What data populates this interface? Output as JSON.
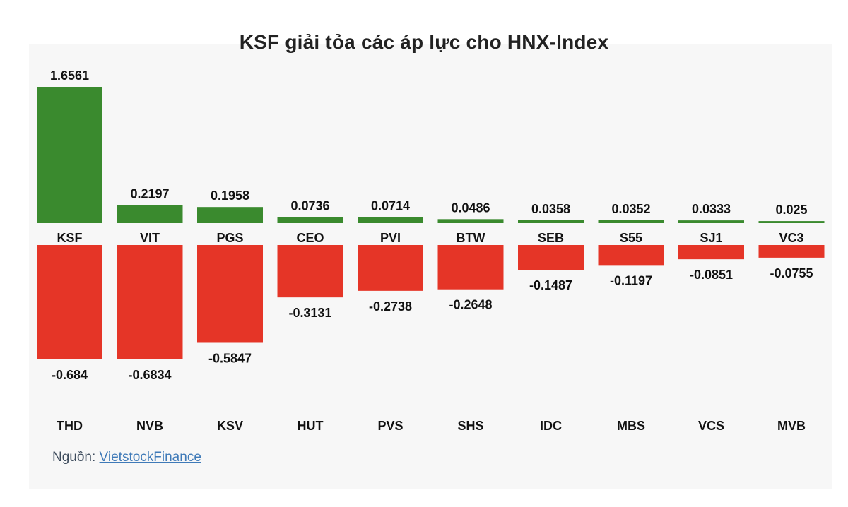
{
  "title": "KSF giải tỏa các áp lực cho HNX-Index",
  "source": {
    "label": "Nguồn: ",
    "link_text": "VietstockFinance"
  },
  "colors": {
    "positive": "#3a8a2e",
    "negative": "#e53527",
    "text": "#111111",
    "panel": "#f7f7f7"
  },
  "chart_data": {
    "type": "bar",
    "title": "KSF giải tỏa các áp lực cho HNX-Index",
    "positive_series": {
      "categories": [
        "KSF",
        "VIT",
        "PGS",
        "CEO",
        "PVI",
        "BTW",
        "SEB",
        "S55",
        "SJ1",
        "VC3"
      ],
      "values": [
        1.6561,
        0.2197,
        0.1958,
        0.0736,
        0.0714,
        0.0486,
        0.0358,
        0.0352,
        0.0333,
        0.025
      ],
      "labels": [
        "1.6561",
        "0.2197",
        "0.1958",
        "0.0736",
        "0.0714",
        "0.0486",
        "0.0358",
        "0.0352",
        "0.0333",
        "0.025"
      ]
    },
    "negative_series": {
      "categories": [
        "THD",
        "NVB",
        "KSV",
        "HUT",
        "PVS",
        "SHS",
        "IDC",
        "MBS",
        "VCS",
        "MVB"
      ],
      "values": [
        -0.684,
        -0.6834,
        -0.5847,
        -0.3131,
        -0.2738,
        -0.2648,
        -0.1487,
        -0.1197,
        -0.0851,
        -0.0755
      ],
      "labels": [
        "-0.684",
        "-0.6834",
        "-0.5847",
        "-0.3131",
        "-0.2738",
        "-0.2648",
        "-0.1487",
        "-0.1197",
        "-0.0851",
        "-0.0755"
      ]
    },
    "legend": "none",
    "grid": false
  }
}
